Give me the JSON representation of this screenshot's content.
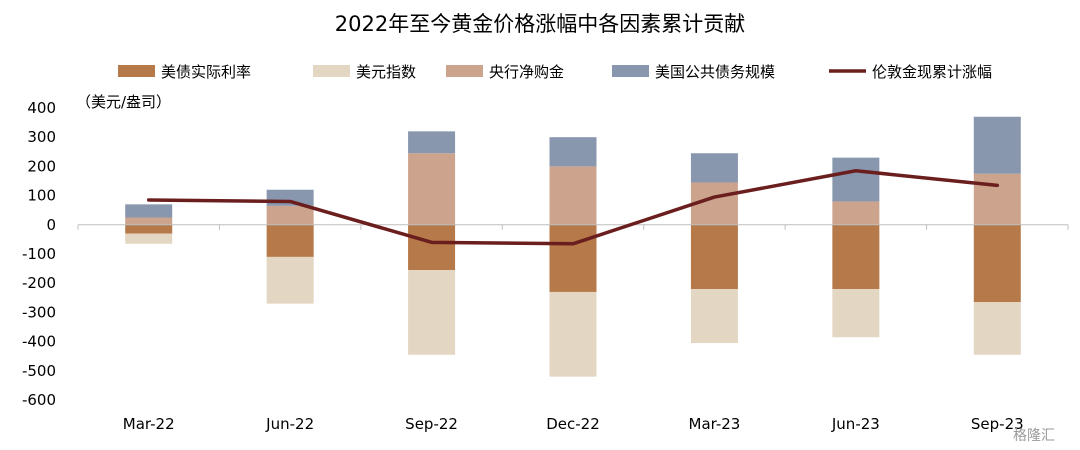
{
  "chart_data": {
    "type": "bar",
    "title": "2022年至今黄金价格涨幅中各因素累计贡献",
    "unit_label": "（美元/盎司）",
    "categories": [
      "Mar-22",
      "Jun-22",
      "Sep-22",
      "Dec-22",
      "Mar-23",
      "Jun-23",
      "Sep-23"
    ],
    "ylim": [
      -600,
      400
    ],
    "yticks": [
      400,
      300,
      200,
      100,
      0,
      -100,
      -200,
      -300,
      -400,
      -500,
      -600
    ],
    "grid": false,
    "legend_position": "top",
    "series": [
      {
        "name": "美债实际利率",
        "kind": "bar",
        "color": "#B5794A",
        "values": [
          -30,
          -110,
          -155,
          -230,
          -220,
          -220,
          -265
        ]
      },
      {
        "name": "美元指数",
        "kind": "bar",
        "color": "#E3D6C2",
        "values": [
          -35,
          -160,
          -290,
          -290,
          -185,
          -165,
          -180
        ]
      },
      {
        "name": "央行净购金",
        "kind": "bar",
        "color": "#CCA48D",
        "values": [
          25,
          65,
          245,
          200,
          145,
          80,
          175
        ]
      },
      {
        "name": "美国公共债务规模",
        "kind": "bar",
        "color": "#8896AE",
        "values": [
          45,
          55,
          75,
          100,
          100,
          150,
          195
        ]
      },
      {
        "name": "伦敦金现累计涨幅",
        "kind": "line",
        "color": "#6B1E1E",
        "values": [
          85,
          80,
          -60,
          -65,
          95,
          185,
          135
        ]
      }
    ]
  },
  "watermark": "格隆汇"
}
